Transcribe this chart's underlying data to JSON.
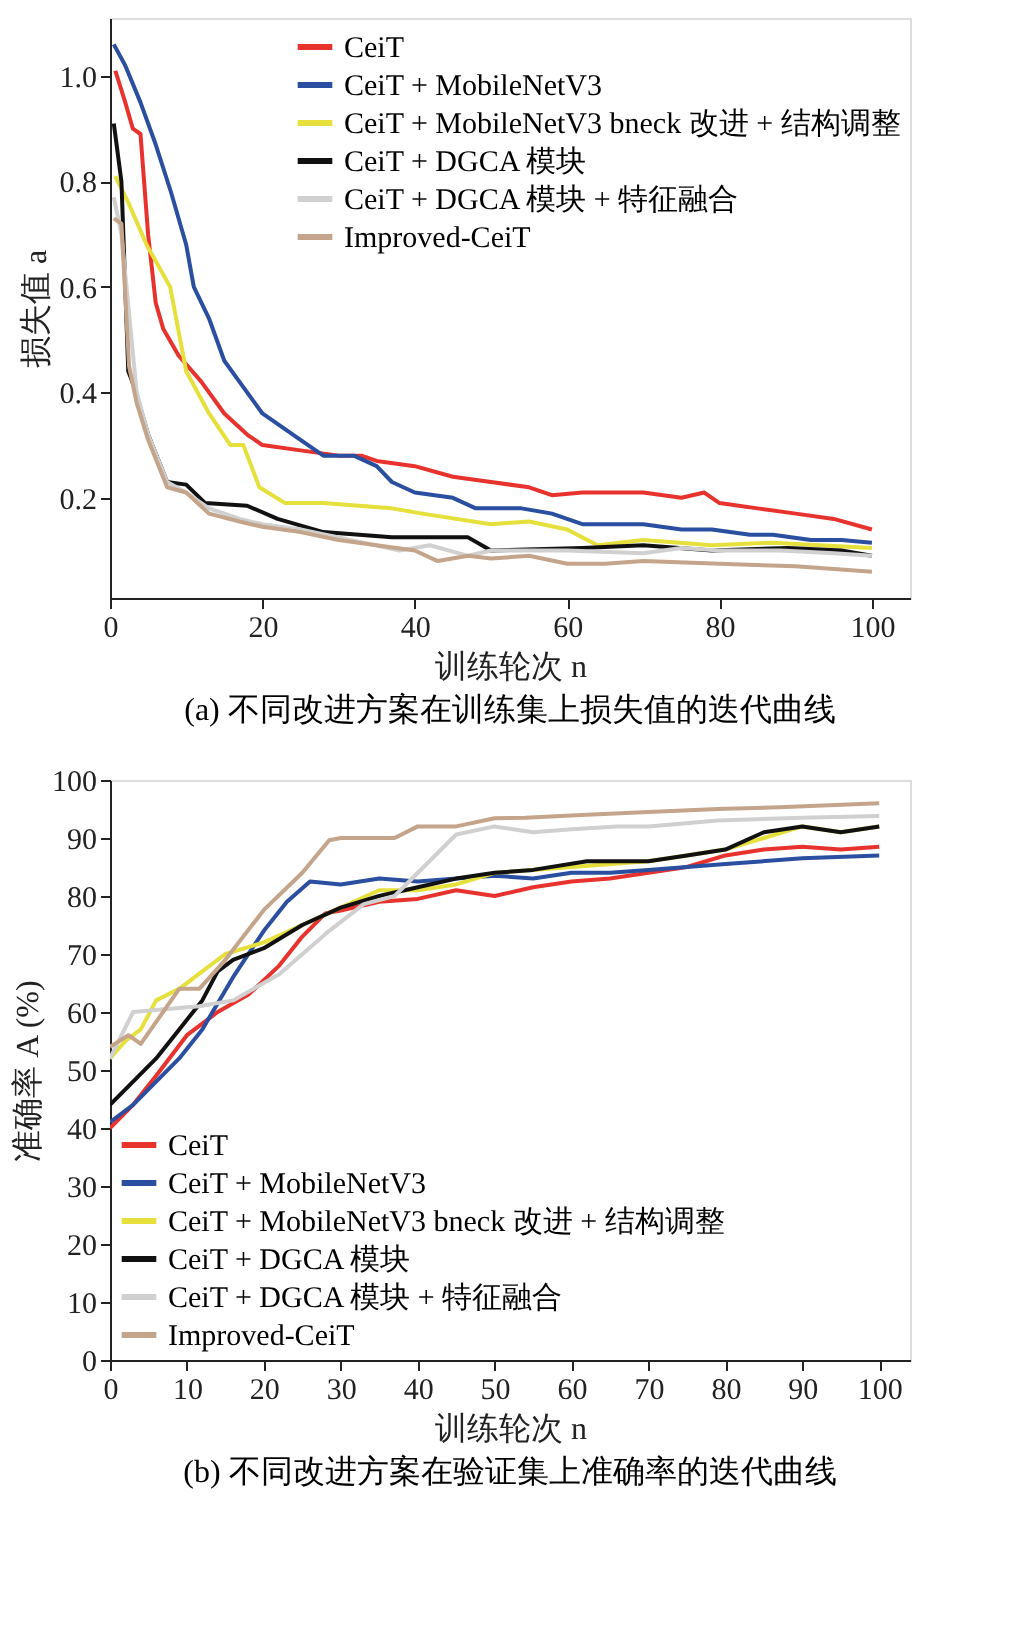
{
  "chart_data": [
    {
      "type": "line",
      "xlabel": "训练轮次 n",
      "ylabel": "损失值 a",
      "annotations": [
        "(a) 不同改进方案在训练集上损失值的迭代曲线"
      ],
      "xlim": [
        0,
        105
      ],
      "ylim": [
        0.01,
        1.11
      ],
      "xticks": [
        0,
        20,
        40,
        60,
        80,
        100
      ],
      "yticks": [
        0.2,
        0.4,
        0.6,
        0.8,
        {
          "value": 1,
          "label": "1.0"
        }
      ],
      "grid": false,
      "legend": "top right",
      "marker": "none",
      "line_style": "solid",
      "series": [
        {
          "name": "CeiT",
          "color": "#e8322e",
          "x": [
            0.7,
            2,
            3,
            4,
            5,
            6,
            7,
            9,
            12,
            15,
            18,
            20,
            25,
            30,
            33,
            35,
            40,
            45,
            50,
            55,
            58,
            62,
            70,
            75,
            78,
            80,
            85,
            90,
            95,
            100
          ],
          "values": [
            1.01,
            0.95,
            0.9,
            0.89,
            0.7,
            0.57,
            0.52,
            0.47,
            0.42,
            0.36,
            0.32,
            0.3,
            0.29,
            0.28,
            0.28,
            0.27,
            0.26,
            0.24,
            0.23,
            0.22,
            0.205,
            0.21,
            0.21,
            0.2,
            0.21,
            0.19,
            0.18,
            0.17,
            0.16,
            0.14
          ]
        },
        {
          "name": "CeiT + MobileNetV3",
          "color": "#2a4ea0",
          "x": [
            0.5,
            2,
            4,
            6,
            8,
            10,
            11,
            13,
            15,
            17,
            20,
            25,
            28,
            32,
            35,
            37,
            40,
            45,
            48,
            54,
            58,
            62,
            70,
            75,
            79,
            84,
            87,
            92,
            96,
            100
          ],
          "values": [
            1.06,
            1.02,
            0.95,
            0.87,
            0.78,
            0.68,
            0.6,
            0.54,
            0.46,
            0.42,
            0.36,
            0.31,
            0.28,
            0.28,
            0.26,
            0.23,
            0.21,
            0.2,
            0.18,
            0.18,
            0.17,
            0.15,
            0.15,
            0.14,
            0.14,
            0.13,
            0.13,
            0.12,
            0.12,
            0.115
          ]
        },
        {
          "name": "CeiT + MobileNetV3 bneck 改进 + 结构调整",
          "color": "#e6e03c",
          "x": [
            0.7,
            2.4,
            4.8,
            7.9,
            10,
            13,
            15.8,
            17.5,
            19.6,
            23,
            28,
            37,
            41,
            50,
            55,
            60,
            64,
            70,
            79,
            87,
            100
          ],
          "values": [
            0.81,
            0.76,
            0.68,
            0.6,
            0.44,
            0.36,
            0.3,
            0.3,
            0.22,
            0.19,
            0.19,
            0.18,
            0.17,
            0.15,
            0.155,
            0.14,
            0.11,
            0.12,
            0.11,
            0.115,
            0.105
          ]
        },
        {
          "name": "CeiT + DGCA 模块",
          "color": "#111111",
          "x": [
            0.5,
            1.5,
            2.4,
            3.2,
            5,
            7.5,
            10,
            12.5,
            18,
            22,
            28,
            37,
            47,
            50,
            62,
            70,
            79,
            89,
            96,
            100
          ],
          "values": [
            0.91,
            0.8,
            0.44,
            0.41,
            0.32,
            0.23,
            0.225,
            0.19,
            0.185,
            0.16,
            0.135,
            0.125,
            0.125,
            0.1,
            0.105,
            0.11,
            0.1,
            0.105,
            0.1,
            0.09
          ]
        },
        {
          "name": "CeiT + DGCA 模块 + 特征融合",
          "color": "#d0d0d0",
          "x": [
            0.5,
            1.5,
            2.5,
            3.5,
            5,
            7.5,
            10,
            13,
            17,
            20,
            25,
            30,
            38,
            42,
            47,
            50,
            55,
            60,
            70,
            75,
            80,
            88,
            95,
            100
          ],
          "values": [
            0.77,
            0.7,
            0.55,
            0.4,
            0.32,
            0.23,
            0.21,
            0.18,
            0.16,
            0.15,
            0.14,
            0.125,
            0.1,
            0.11,
            0.09,
            0.1,
            0.1,
            0.1,
            0.095,
            0.105,
            0.1,
            0.1,
            0.095,
            0.09
          ]
        },
        {
          "name": "Improved-CeiT",
          "color": "#c4a48a",
          "x": [
            0.5,
            1.5,
            2.5,
            3.5,
            5,
            7.5,
            10,
            13,
            17,
            20,
            25,
            30,
            35,
            40,
            43,
            47,
            50,
            55,
            60,
            65,
            70,
            80,
            90,
            100
          ],
          "values": [
            0.73,
            0.72,
            0.45,
            0.38,
            0.31,
            0.22,
            0.21,
            0.17,
            0.155,
            0.145,
            0.135,
            0.12,
            0.11,
            0.1,
            0.08,
            0.09,
            0.085,
            0.09,
            0.075,
            0.075,
            0.08,
            0.075,
            0.07,
            0.06
          ]
        }
      ]
    },
    {
      "type": "line",
      "xlabel": "训练轮次 n",
      "ylabel": "准确率 A (%)",
      "annotations": [
        "(b) 不同改进方案在验证集上准确率的迭代曲线"
      ],
      "xlim": [
        0,
        104
      ],
      "ylim": [
        0,
        100
      ],
      "xticks": [
        0,
        10,
        20,
        30,
        40,
        50,
        60,
        70,
        80,
        90,
        100
      ],
      "yticks": [
        0,
        10,
        20,
        30,
        40,
        50,
        60,
        70,
        80,
        90,
        100
      ],
      "grid": false,
      "legend": "bottom left",
      "marker": "none",
      "line_style": "solid",
      "series": [
        {
          "name": "CeiT",
          "color": "#e8322e",
          "x": [
            0,
            3,
            6,
            10,
            14,
            18,
            22,
            25,
            28,
            30,
            35,
            40,
            45,
            50,
            55,
            60,
            65,
            70,
            75,
            80,
            85,
            90,
            95,
            100
          ],
          "values": [
            40,
            44,
            49,
            56,
            60,
            63,
            68,
            73,
            77,
            77.5,
            79,
            79.5,
            81,
            80,
            81.5,
            82.5,
            83,
            84,
            85,
            87,
            88,
            88.5,
            88,
            88.5
          ]
        },
        {
          "name": "CeiT + MobileNetV3",
          "color": "#2a4ea0",
          "x": [
            0,
            3,
            6,
            9,
            12,
            16,
            20,
            23,
            26,
            30,
            35,
            40,
            45,
            50,
            55,
            60,
            65,
            70,
            80,
            90,
            100
          ],
          "values": [
            41,
            44,
            48,
            52,
            57,
            66,
            74,
            79,
            82.5,
            82,
            83,
            82.5,
            83,
            83.5,
            83,
            84,
            84,
            84.5,
            85.5,
            86.5,
            87
          ]
        },
        {
          "name": "CeiT + MobileNetV3 bneck 改进 + 结构调整",
          "color": "#e6e03c",
          "x": [
            0,
            2,
            4,
            6,
            9,
            12,
            15,
            20,
            25,
            30,
            35,
            40,
            45,
            50,
            55,
            60,
            70,
            75,
            80,
            85,
            90,
            95,
            100
          ],
          "values": [
            52,
            55,
            57,
            62,
            64,
            67,
            70,
            72,
            75,
            78,
            81,
            81,
            82,
            84,
            84.5,
            85,
            86,
            87,
            88,
            90,
            92,
            91,
            92
          ]
        },
        {
          "name": "CeiT + DGCA 模块",
          "color": "#111111",
          "x": [
            0,
            3,
            6,
            9,
            12,
            14,
            16,
            20,
            25,
            30,
            35,
            40,
            45,
            50,
            55,
            62,
            70,
            75,
            80,
            85,
            90,
            95,
            100
          ],
          "values": [
            44,
            48,
            52,
            57,
            62,
            67,
            69,
            71,
            75,
            78,
            80,
            81.5,
            83,
            84,
            84.5,
            86,
            86,
            87,
            88,
            91,
            92,
            91,
            92
          ]
        },
        {
          "name": "CeiT + DGCA 模块 + 特征融合",
          "color": "#d0d0d0",
          "x": [
            0,
            3,
            11.6,
            16,
            22,
            28.5,
            33,
            37,
            45,
            50,
            55,
            60,
            66,
            70,
            79,
            90,
            100
          ],
          "values": [
            52,
            60,
            61,
            62,
            66.5,
            74,
            78.6,
            80,
            90.6,
            92,
            91,
            91.5,
            92,
            92,
            93,
            93.5,
            93.8
          ]
        },
        {
          "name": "Improved-CeiT",
          "color": "#c4a48a",
          "x": [
            0,
            2.4,
            4,
            9,
            11.6,
            15,
            20,
            25,
            28.5,
            30,
            37,
            40,
            45,
            50,
            54,
            62,
            70,
            79,
            87,
            100
          ],
          "values": [
            54,
            56,
            54.5,
            64,
            64,
            69,
            77.6,
            84,
            89.6,
            90,
            90,
            92,
            92,
            93.4,
            93.5,
            94,
            94.5,
            95,
            95.3,
            96
          ]
        }
      ]
    }
  ]
}
